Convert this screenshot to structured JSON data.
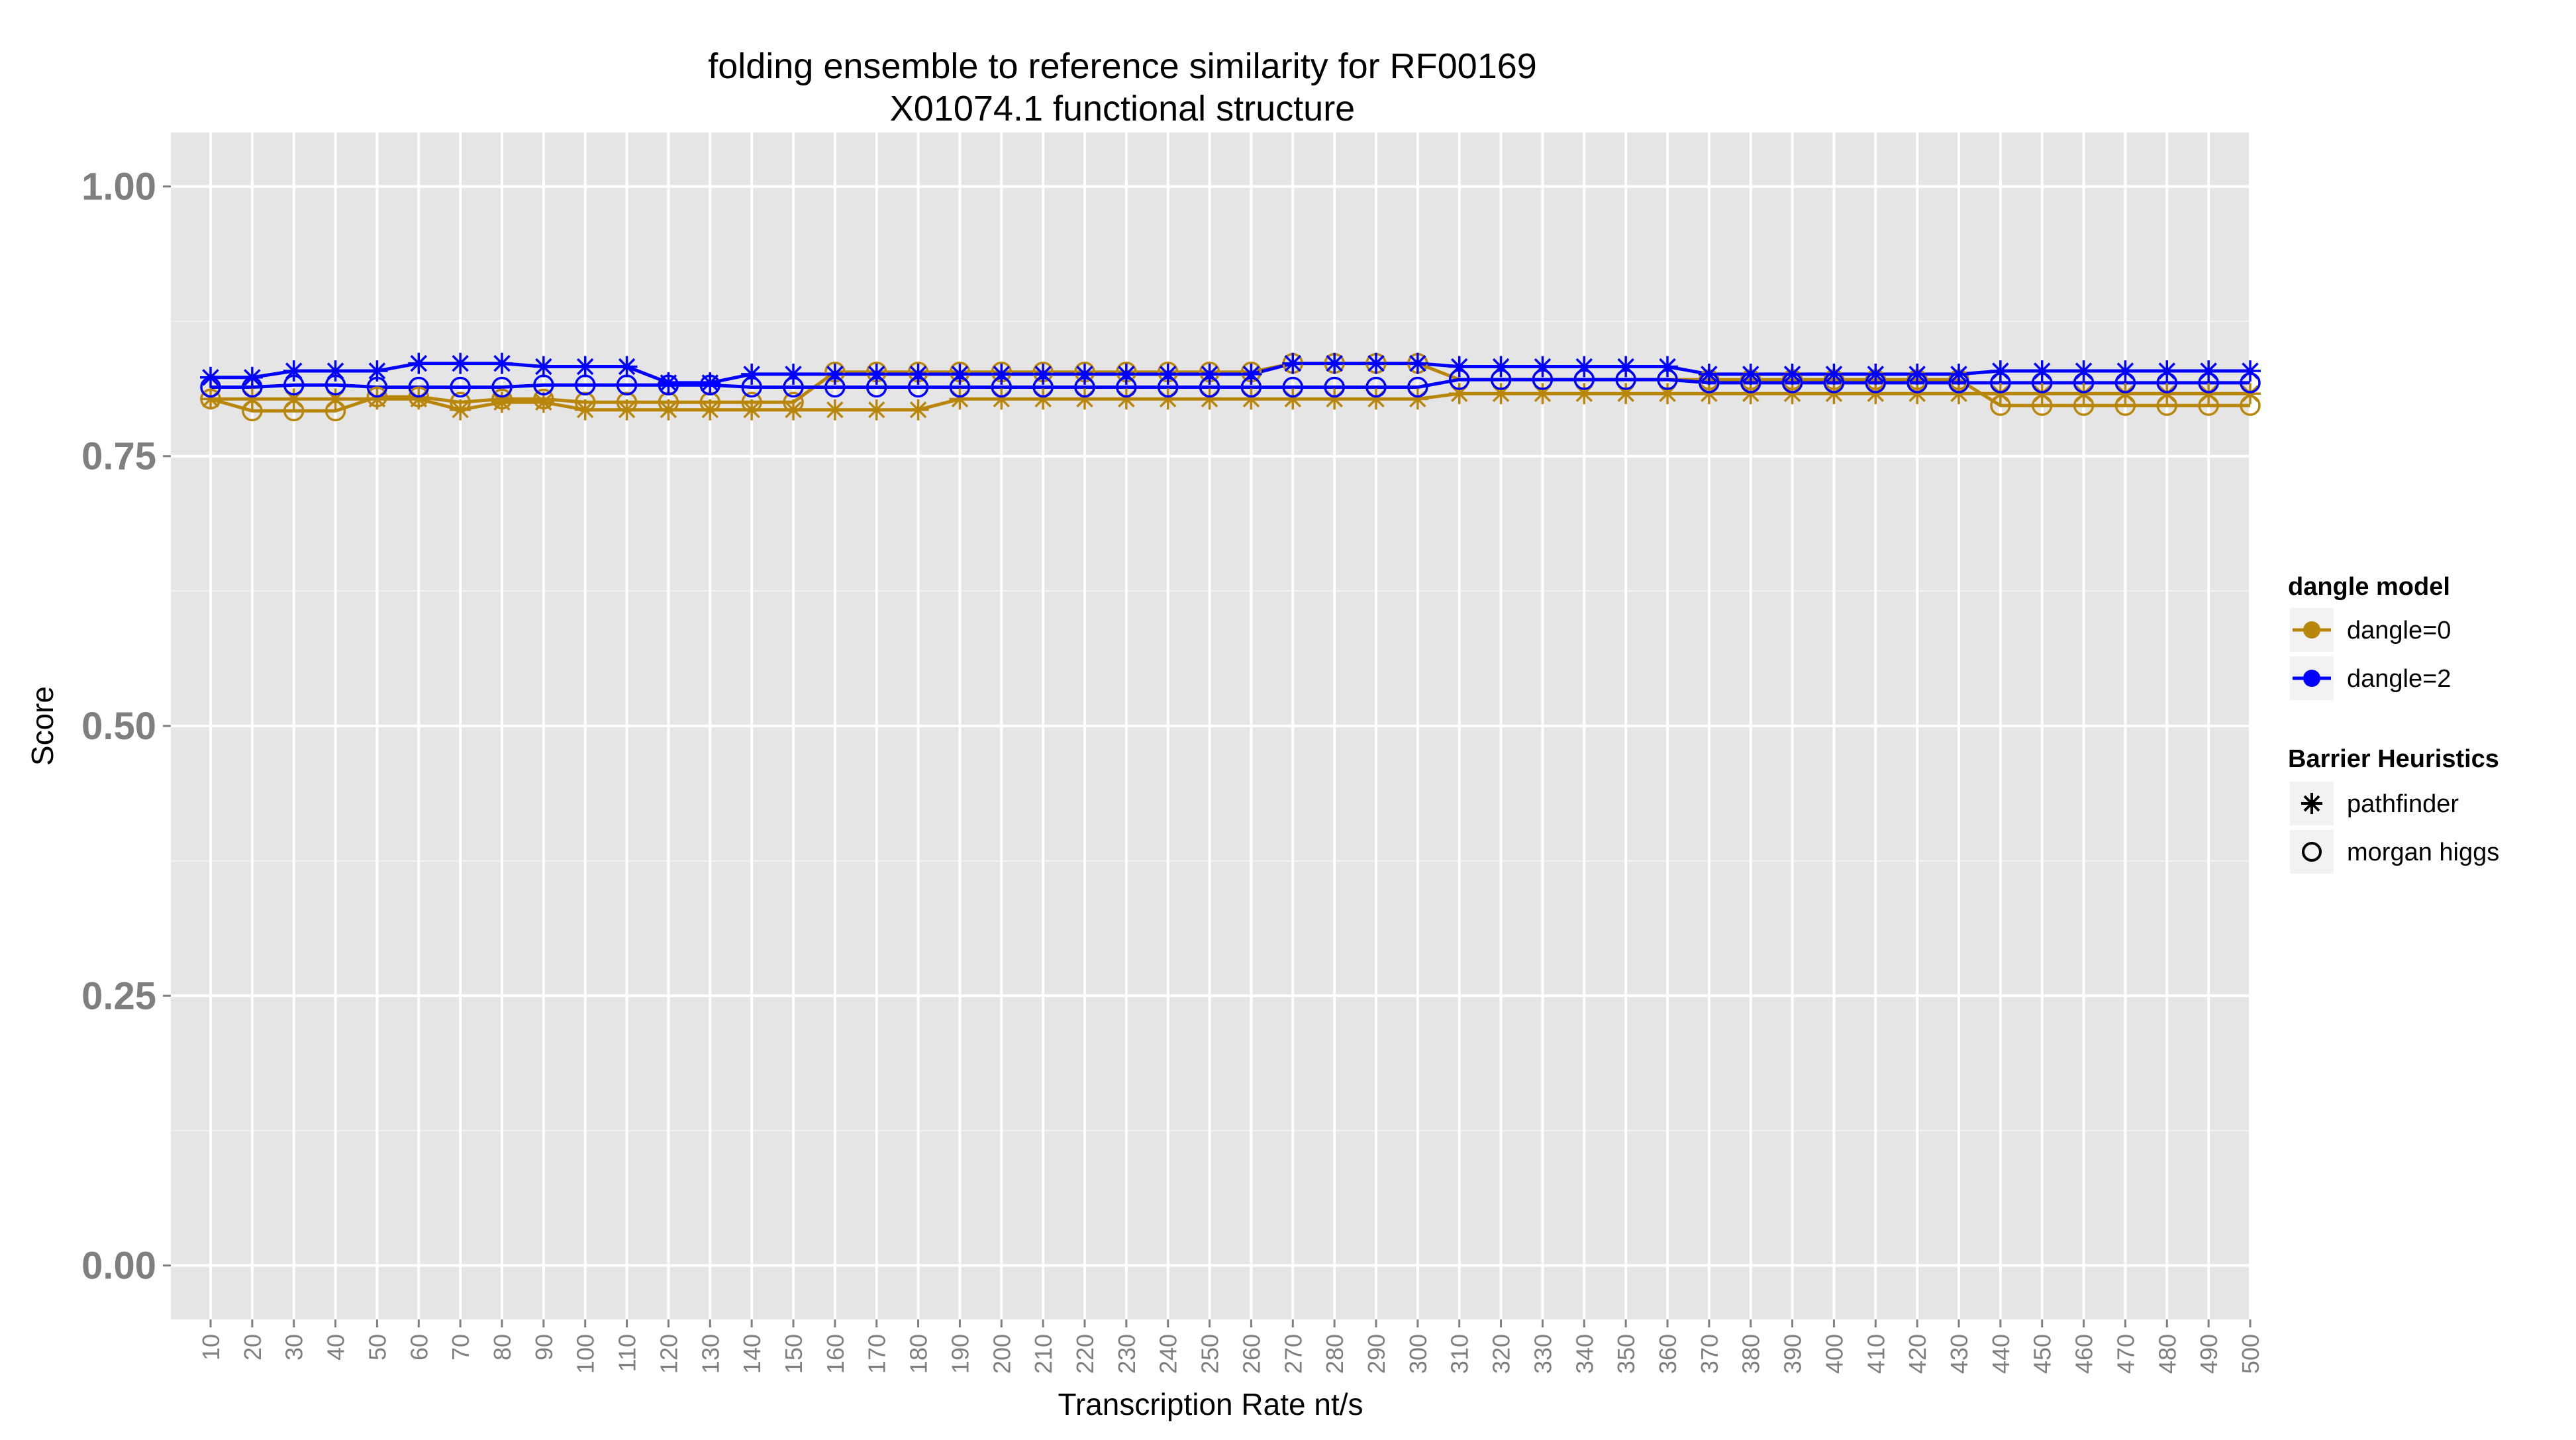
{
  "chart_data": {
    "type": "line",
    "title": "folding ensemble to reference similarity for RF00169",
    "subtitle": "X01074.1 functional structure",
    "xlabel": "Transcription Rate nt/s",
    "ylabel": "Score",
    "ylim": [
      -0.05,
      1.05
    ],
    "yticks": [
      0.0,
      0.25,
      0.5,
      0.75,
      1.0
    ],
    "ytick_labels": [
      "0.00",
      "0.25",
      "0.50",
      "0.75",
      "1.00"
    ],
    "grid": true,
    "x": [
      10,
      20,
      30,
      40,
      50,
      60,
      70,
      80,
      90,
      100,
      110,
      120,
      130,
      140,
      150,
      160,
      170,
      180,
      190,
      200,
      210,
      220,
      230,
      240,
      250,
      260,
      270,
      280,
      290,
      300,
      310,
      320,
      330,
      340,
      350,
      360,
      370,
      380,
      390,
      400,
      410,
      420,
      430,
      440,
      450,
      460,
      470,
      480,
      490,
      500
    ],
    "legend": {
      "position": "right",
      "color_title": "dangle model",
      "color_entries": [
        {
          "label": "dangle=0",
          "color": "#b8860b"
        },
        {
          "label": "dangle=2",
          "color": "#0000ff"
        }
      ],
      "shape_title": "Barrier Heuristics",
      "shape_entries": [
        {
          "label": "pathfinder",
          "shape": "asterisk"
        },
        {
          "label": "morgan higgs",
          "shape": "circle"
        }
      ]
    },
    "series": [
      {
        "dangle": "dangle=0",
        "heuristic": "pathfinder",
        "color": "#b8860b",
        "shape": "asterisk",
        "values": [
          0.803,
          0.803,
          0.803,
          0.803,
          0.803,
          0.803,
          0.793,
          0.8,
          0.8,
          0.793,
          0.793,
          0.793,
          0.793,
          0.793,
          0.793,
          0.793,
          0.793,
          0.793,
          0.803,
          0.803,
          0.803,
          0.803,
          0.803,
          0.803,
          0.803,
          0.803,
          0.803,
          0.803,
          0.803,
          0.803,
          0.808,
          0.808,
          0.808,
          0.808,
          0.808,
          0.808,
          0.808,
          0.808,
          0.808,
          0.808,
          0.808,
          0.808,
          0.808,
          0.808,
          0.808,
          0.808,
          0.808,
          0.808,
          0.808,
          0.808
        ]
      },
      {
        "dangle": "dangle=0",
        "heuristic": "morgan higgs",
        "color": "#b8860b",
        "shape": "circle",
        "values": [
          0.803,
          0.792,
          0.792,
          0.792,
          0.805,
          0.805,
          0.8,
          0.803,
          0.803,
          0.8,
          0.8,
          0.8,
          0.8,
          0.8,
          0.8,
          0.828,
          0.828,
          0.828,
          0.828,
          0.828,
          0.828,
          0.828,
          0.828,
          0.828,
          0.828,
          0.828,
          0.836,
          0.836,
          0.836,
          0.836,
          0.821,
          0.821,
          0.821,
          0.821,
          0.821,
          0.821,
          0.821,
          0.821,
          0.821,
          0.821,
          0.821,
          0.821,
          0.821,
          0.797,
          0.797,
          0.797,
          0.797,
          0.797,
          0.797,
          0.797
        ]
      },
      {
        "dangle": "dangle=2",
        "heuristic": "pathfinder",
        "color": "#0000ff",
        "shape": "asterisk",
        "values": [
          0.823,
          0.823,
          0.829,
          0.829,
          0.829,
          0.836,
          0.836,
          0.836,
          0.833,
          0.833,
          0.833,
          0.818,
          0.818,
          0.826,
          0.826,
          0.826,
          0.826,
          0.826,
          0.826,
          0.826,
          0.826,
          0.826,
          0.826,
          0.826,
          0.826,
          0.826,
          0.836,
          0.836,
          0.836,
          0.836,
          0.833,
          0.833,
          0.833,
          0.833,
          0.833,
          0.833,
          0.826,
          0.826,
          0.826,
          0.826,
          0.826,
          0.826,
          0.826,
          0.829,
          0.829,
          0.829,
          0.829,
          0.829,
          0.829,
          0.829
        ]
      },
      {
        "dangle": "dangle=2",
        "heuristic": "morgan higgs",
        "color": "#0000ff",
        "shape": "circle",
        "values": [
          0.814,
          0.814,
          0.816,
          0.816,
          0.814,
          0.814,
          0.814,
          0.814,
          0.816,
          0.816,
          0.816,
          0.816,
          0.816,
          0.814,
          0.814,
          0.814,
          0.814,
          0.814,
          0.814,
          0.814,
          0.814,
          0.814,
          0.814,
          0.814,
          0.814,
          0.814,
          0.814,
          0.814,
          0.814,
          0.814,
          0.821,
          0.821,
          0.821,
          0.821,
          0.821,
          0.821,
          0.818,
          0.818,
          0.818,
          0.818,
          0.818,
          0.818,
          0.818,
          0.818,
          0.818,
          0.818,
          0.818,
          0.818,
          0.818,
          0.818
        ]
      }
    ]
  }
}
